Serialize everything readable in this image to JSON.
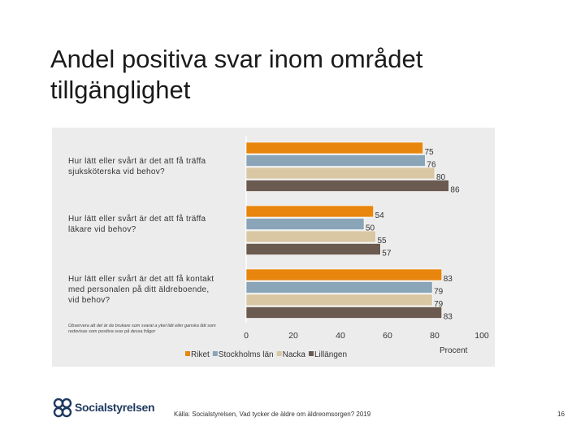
{
  "slide": {
    "title": "Andel positiva svar inom området tillgänglighet",
    "note": "Observera att del är de brukare som svarat a ykel lätt eller ganska lätt som redovisas som positiva svar på dessa frågor",
    "source": "Källa: Socialstyrelsen, Vad tycker de äldre om äldreomsorgen? 2019",
    "page_number": "16",
    "logo_text": "Socialstyrelsen"
  },
  "chart_data": {
    "type": "bar",
    "orientation": "horizontal",
    "categories": [
      "Hur lätt eller svårt är det att få träffa sjuksköterska vid behov?",
      "Hur lätt eller svårt är det att få träffa läkare vid behov?",
      "Hur lätt eller svårt är det att få kontakt med personalen på ditt äldreboende, vid behov?"
    ],
    "series": [
      {
        "name": "Riket",
        "values": [
          75,
          54,
          83
        ],
        "color": "#e8850c"
      },
      {
        "name": "Stockholms län",
        "values": [
          76,
          50,
          79
        ],
        "color": "#8aa4b8"
      },
      {
        "name": "Nacka",
        "values": [
          80,
          55,
          79
        ],
        "color": "#d9c7a3"
      },
      {
        "name": "Lillängen",
        "values": [
          86,
          57,
          83
        ],
        "color": "#6b5a4f"
      }
    ],
    "xlim": [
      0,
      100
    ],
    "xticks": [
      "0",
      "20",
      "40",
      "60",
      "80",
      "100"
    ],
    "xlabel": "Procent",
    "legend_position": "bottom",
    "grid": false
  }
}
